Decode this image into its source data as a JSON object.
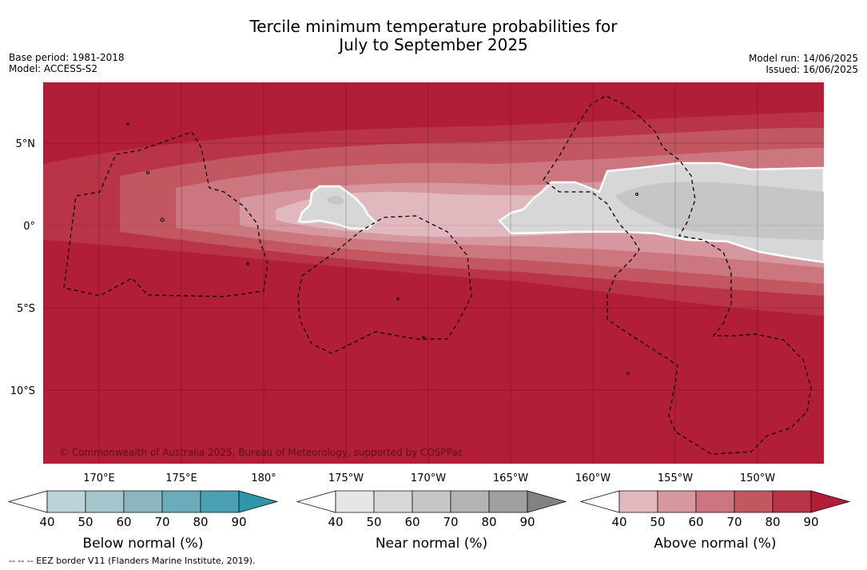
{
  "title_line1": "Tercile minimum temperature probabilities for",
  "title_line2": "July to September 2025",
  "base_period": "Base period: 1981-2018",
  "model": "Model: ACCESS-S2",
  "model_run": "Model run: 14/06/2025",
  "issued": "Issued: 16/06/2025",
  "copyright": "© Commonwealth of Australia 2025, Bureau of Meteorology, supported by COSPPac",
  "lat_ticks": [
    "5°N",
    "0°",
    "5°S",
    "10°S"
  ],
  "lon_ticks": [
    "170°E",
    "175°E",
    "180°",
    "175°W",
    "170°W",
    "165°W",
    "160°W",
    "155°W",
    "150°W"
  ],
  "colorbars": [
    {
      "label": "Below normal (%)",
      "ticks": [
        "40",
        "50",
        "60",
        "70",
        "80",
        "90"
      ],
      "colors": [
        "#ffffff",
        "#bdd3da",
        "#a5c5cc",
        "#8bb6c1",
        "#6cabb9",
        "#4ba0b2",
        "#2f95ab"
      ]
    },
    {
      "label": "Near normal (%)",
      "ticks": [
        "40",
        "50",
        "60",
        "70",
        "80",
        "90"
      ],
      "colors": [
        "#ffffff",
        "#e6e6e6",
        "#d7d7d7",
        "#c6c6c6",
        "#b4b4b4",
        "#a0a0a0",
        "#828282"
      ]
    },
    {
      "label": "Above normal (%)",
      "ticks": [
        "40",
        "50",
        "60",
        "70",
        "80",
        "90"
      ],
      "colors": [
        "#ffffff",
        "#e0b8be",
        "#d6979e",
        "#cc767f",
        "#c25761",
        "#b83446",
        "#b21e38"
      ]
    }
  ],
  "footnote": "--  --  -- EEZ border V11 (Flanders Marine Institute, 2019)."
}
